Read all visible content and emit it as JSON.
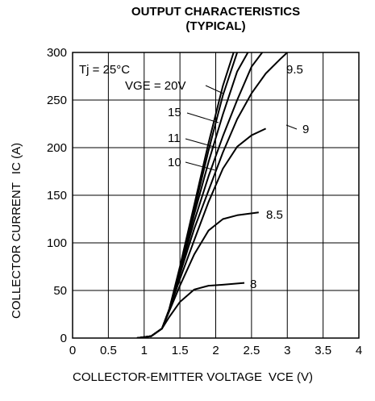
{
  "chart_data": {
    "type": "line",
    "title": "OUTPUT CHARACTERISTICS",
    "subtitle": "(TYPICAL)",
    "xlabel": "COLLECTOR-EMITTER VOLTAGE",
    "xlabel_symbol": "VCE (V)",
    "ylabel": "COLLECTOR CURRENT",
    "ylabel_symbol": "IC (A)",
    "xlim": [
      0,
      4
    ],
    "ylim": [
      0,
      300
    ],
    "xticks": [
      "0",
      "0.5",
      "1",
      "1.5",
      "2",
      "2.5",
      "3",
      "3.5",
      "4"
    ],
    "yticks": [
      "0",
      "50",
      "100",
      "150",
      "200",
      "250",
      "300"
    ],
    "grid": true,
    "annotations": {
      "temperature": "Tj = 25°C",
      "vge_prefix": "VGE = 20V"
    },
    "series": [
      {
        "name": "20V",
        "label": "VGE = 20V",
        "x": [
          0.9,
          1.1,
          1.25,
          1.35,
          1.5,
          1.7,
          1.9,
          2.1,
          2.25
        ],
        "y": [
          0,
          2,
          10,
          30,
          75,
          140,
          205,
          265,
          300
        ]
      },
      {
        "name": "15",
        "label": "15",
        "x": [
          0.9,
          1.1,
          1.25,
          1.35,
          1.5,
          1.7,
          1.9,
          2.1,
          2.3
        ],
        "y": [
          0,
          2,
          10,
          30,
          73,
          135,
          197,
          255,
          300
        ]
      },
      {
        "name": "11",
        "label": "11",
        "x": [
          0.9,
          1.1,
          1.25,
          1.35,
          1.5,
          1.7,
          1.9,
          2.1,
          2.3,
          2.45
        ],
        "y": [
          0,
          2,
          10,
          30,
          72,
          130,
          185,
          235,
          280,
          300
        ]
      },
      {
        "name": "10",
        "label": "10",
        "x": [
          0.9,
          1.1,
          1.25,
          1.35,
          1.5,
          1.7,
          1.9,
          2.1,
          2.3,
          2.5,
          2.65
        ],
        "y": [
          0,
          2,
          10,
          30,
          70,
          123,
          170,
          212,
          250,
          285,
          300
        ]
      },
      {
        "name": "9.5",
        "label": "9.5",
        "x": [
          0.9,
          1.1,
          1.25,
          1.35,
          1.5,
          1.7,
          1.9,
          2.1,
          2.3,
          2.5,
          2.7,
          2.9,
          3.0
        ],
        "y": [
          0,
          2,
          10,
          30,
          67,
          115,
          155,
          195,
          230,
          257,
          278,
          293,
          300
        ]
      },
      {
        "name": "9",
        "label": "9",
        "x": [
          0.9,
          1.1,
          1.25,
          1.35,
          1.5,
          1.7,
          1.9,
          2.1,
          2.3,
          2.5,
          2.7
        ],
        "y": [
          0,
          2,
          10,
          30,
          62,
          103,
          143,
          178,
          201,
          213,
          220
        ]
      },
      {
        "name": "8.5",
        "label": "8.5",
        "x": [
          0.9,
          1.1,
          1.25,
          1.35,
          1.5,
          1.7,
          1.9,
          2.1,
          2.3,
          2.6
        ],
        "y": [
          0,
          2,
          10,
          28,
          55,
          88,
          113,
          125,
          129,
          132
        ]
      },
      {
        "name": "8",
        "label": "8",
        "x": [
          0.9,
          1.1,
          1.25,
          1.35,
          1.5,
          1.7,
          1.9,
          2.1,
          2.4
        ],
        "y": [
          0,
          2,
          10,
          22,
          38,
          51,
          55,
          56,
          58
        ]
      }
    ]
  }
}
